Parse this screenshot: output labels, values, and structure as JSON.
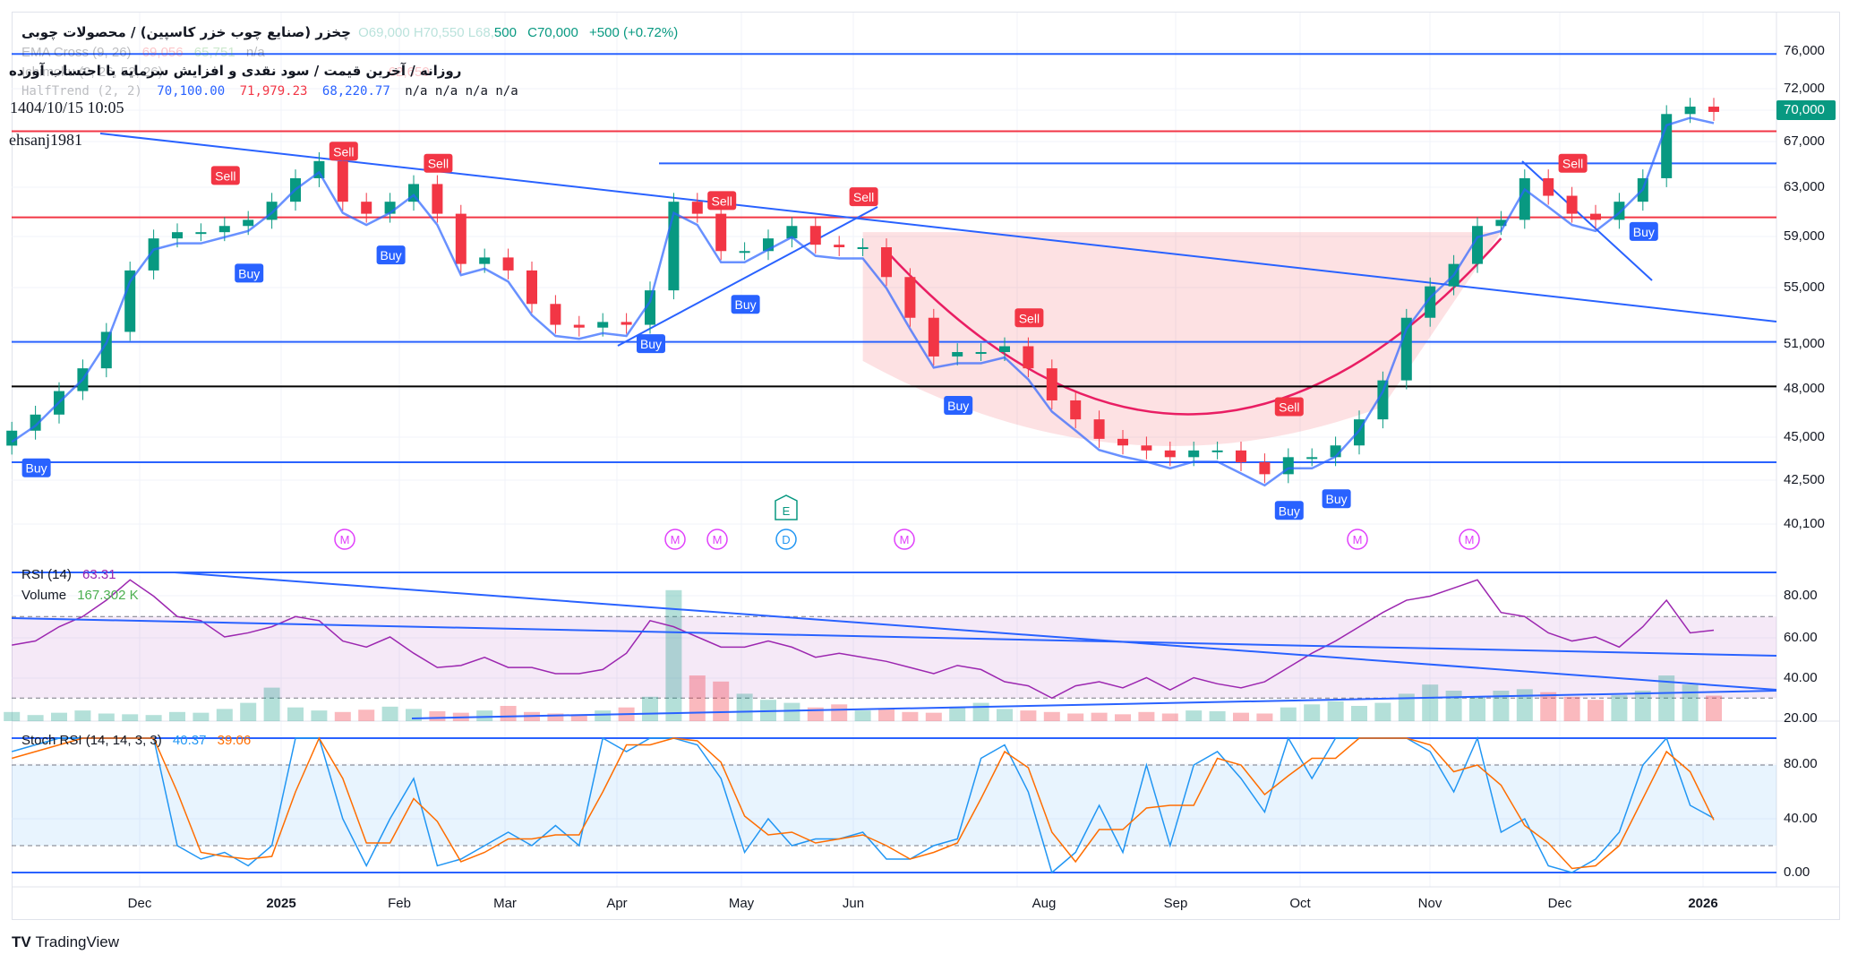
{
  "header": {
    "title": "چخزر (صنایع چوب خزر کاسپین) / محصولات چوبی",
    "ohl_faded": "O69,000 H70,550 L68,",
    "low_tail": "500",
    "close": "C70,000",
    "change": "+500 (+0.72%)",
    "subtitle": "روزانه / آخرین قیمت / سود نقدی و افزایش سرمایه با احتساب آورده",
    "ema_cross": {
      "label": "EMA Cross (9, 26)",
      "v1": "69,056",
      "v2": "65,751",
      "v3": "n/a"
    },
    "ichimoku": {
      "label": "Ichimoku (9, 26, 52, 26)",
      "last": "62,650"
    },
    "halftrend": {
      "label": "HalfTrend (2, 2)",
      "v1": "70,100.00",
      "v2": "71,979.23",
      "v3": "68,220.77",
      "na": "n/a n/a n/a n/a"
    },
    "datetime": "1404/10/15 10:05",
    "author": "ehsanj1981"
  },
  "colors": {
    "up": "#089981",
    "down": "#f23645",
    "line_blue": "#2962ff",
    "rsi": "#9c27b0",
    "stoch_k": "#2196f3",
    "stoch_d": "#ff6d00",
    "volume": "#4caf50"
  },
  "price_axis": [
    "76,000",
    "72,000",
    "70,000",
    "67,000",
    "63,000",
    "59,000",
    "55,000",
    "51,000",
    "48,000",
    "45,000",
    "42,500",
    "40,100"
  ],
  "last_price": "70,000",
  "rsi_panel": {
    "label": "RSI (14)",
    "value": "63.31",
    "volume_label": "Volume",
    "volume_value": "167.302 K",
    "axis": [
      "80.00",
      "60.00",
      "40.00",
      "20.00"
    ]
  },
  "stoch_panel": {
    "label": "Stoch RSI (14, 14, 3, 3)",
    "k": "40.37",
    "d": "39.06",
    "axis": [
      "80.00",
      "40.00",
      "0.00"
    ]
  },
  "time_axis": [
    {
      "label": "Dec",
      "bold": false
    },
    {
      "label": "2025",
      "bold": true
    },
    {
      "label": "Feb",
      "bold": false
    },
    {
      "label": "Mar",
      "bold": false
    },
    {
      "label": "Apr",
      "bold": false
    },
    {
      "label": "May",
      "bold": false
    },
    {
      "label": "Jun",
      "bold": false
    },
    {
      "label": "Aug",
      "bold": false
    },
    {
      "label": "Sep",
      "bold": false
    },
    {
      "label": "Oct",
      "bold": false
    },
    {
      "label": "Nov",
      "bold": false
    },
    {
      "label": "Dec",
      "bold": false
    },
    {
      "label": "2026",
      "bold": true
    }
  ],
  "branding": "TradingView",
  "events": {
    "m": "M",
    "e": "E",
    "d": "D"
  },
  "chart_data": {
    "type": "candlestick",
    "price_scale": "log",
    "ylim": [
      40100,
      76000
    ],
    "close": [
      45500,
      46500,
      48000,
      49500,
      52000,
      56500,
      59000,
      59500,
      59500,
      60000,
      60500,
      62000,
      64000,
      65500,
      62000,
      61000,
      62000,
      63500,
      61000,
      57000,
      57500,
      56500,
      54000,
      52500,
      52300,
      52700,
      52500,
      55000,
      62000,
      61000,
      58000,
      58000,
      59000,
      60000,
      58500,
      58300,
      58300,
      56000,
      53000,
      50300,
      50600,
      50600,
      51000,
      49500,
      47400,
      46200,
      45000,
      44600,
      44300,
      43900,
      44300,
      44300,
      43600,
      42900,
      43900,
      43900,
      44600,
      46200,
      48700,
      53000,
      55300,
      57000,
      60000,
      60500,
      64000,
      62500,
      61000,
      60500,
      62000,
      64000,
      69800,
      70500,
      70000
    ],
    "levels": [
      {
        "price": 75700,
        "color": "blue"
      },
      {
        "price": 68200,
        "color": "red"
      },
      {
        "price": 65300,
        "color": "blue"
      },
      {
        "price": 60700,
        "color": "red"
      },
      {
        "price": 51300,
        "color": "blue"
      },
      {
        "price": 48300,
        "color": "black"
      },
      {
        "price": 43600,
        "color": "blue"
      }
    ],
    "signals": [
      {
        "type": "Sell",
        "i": 9
      },
      {
        "type": "Sell",
        "i": 14
      },
      {
        "type": "Sell",
        "i": 18
      },
      {
        "type": "Sell",
        "i": 30
      },
      {
        "type": "Sell",
        "i": 36
      },
      {
        "type": "Sell",
        "i": 43
      },
      {
        "type": "Sell",
        "i": 54
      },
      {
        "type": "Sell",
        "i": 66
      },
      {
        "type": "Buy",
        "i": 1
      },
      {
        "type": "Buy",
        "i": 10
      },
      {
        "type": "Buy",
        "i": 16
      },
      {
        "type": "Buy",
        "i": 27
      },
      {
        "type": "Buy",
        "i": 31
      },
      {
        "type": "Buy",
        "i": 40
      },
      {
        "type": "Buy",
        "i": 54
      },
      {
        "type": "Buy",
        "i": 56
      },
      {
        "type": "Buy",
        "i": 69
      }
    ],
    "rsi": [
      56,
      58,
      65,
      70,
      78,
      88,
      80,
      70,
      68,
      60,
      62,
      65,
      70,
      68,
      58,
      55,
      60,
      52,
      45,
      46,
      50,
      45,
      45,
      42,
      42,
      44,
      52,
      68,
      65,
      60,
      55,
      55,
      58,
      55,
      50,
      52,
      50,
      48,
      45,
      42,
      46,
      44,
      38,
      36,
      30,
      36,
      38,
      35,
      40,
      34,
      40,
      37,
      35,
      38,
      45,
      52,
      58,
      65,
      72,
      78,
      80,
      84,
      88,
      72,
      70,
      62,
      58,
      60,
      55,
      65,
      78,
      62,
      63.31
    ],
    "rsi_bands": [
      30,
      70
    ],
    "volume_k": [
      60,
      40,
      55,
      70,
      50,
      45,
      40,
      60,
      55,
      80,
      120,
      220,
      90,
      70,
      60,
      75,
      95,
      80,
      65,
      55,
      70,
      100,
      60,
      50,
      45,
      70,
      90,
      160,
      860,
      300,
      260,
      180,
      140,
      120,
      90,
      110,
      70,
      85,
      60,
      55,
      95,
      120,
      80,
      70,
      60,
      50,
      55,
      45,
      60,
      50,
      70,
      65,
      55,
      50,
      90,
      110,
      130,
      100,
      120,
      180,
      240,
      200,
      160,
      200,
      210,
      190,
      160,
      140,
      170,
      200,
      300,
      240,
      167.302
    ],
    "stoch_k": [
      90,
      95,
      100,
      100,
      100,
      100,
      100,
      20,
      10,
      15,
      5,
      20,
      100,
      100,
      40,
      5,
      40,
      70,
      5,
      10,
      20,
      30,
      20,
      35,
      20,
      100,
      90,
      100,
      100,
      95,
      70,
      15,
      40,
      20,
      25,
      25,
      30,
      10,
      10,
      20,
      25,
      85,
      95,
      60,
      0,
      15,
      50,
      15,
      80,
      20,
      80,
      90,
      70,
      45,
      100,
      70,
      100,
      100,
      100,
      100,
      90,
      60,
      100,
      30,
      40,
      5,
      0,
      10,
      30,
      80,
      100,
      50,
      40.37
    ],
    "stoch_d": [
      85,
      90,
      95,
      100,
      100,
      100,
      100,
      60,
      15,
      12,
      10,
      12,
      60,
      100,
      70,
      22,
      22,
      55,
      38,
      8,
      15,
      25,
      25,
      28,
      28,
      60,
      95,
      95,
      100,
      98,
      82,
      42,
      28,
      30,
      22,
      25,
      28,
      20,
      10,
      15,
      22,
      55,
      90,
      78,
      30,
      8,
      32,
      32,
      48,
      50,
      50,
      85,
      80,
      58,
      72,
      85,
      85,
      100,
      100,
      100,
      95,
      75,
      80,
      65,
      35,
      22,
      3,
      5,
      20,
      55,
      90,
      75,
      39.06
    ],
    "stoch_bands": [
      20,
      80
    ]
  }
}
